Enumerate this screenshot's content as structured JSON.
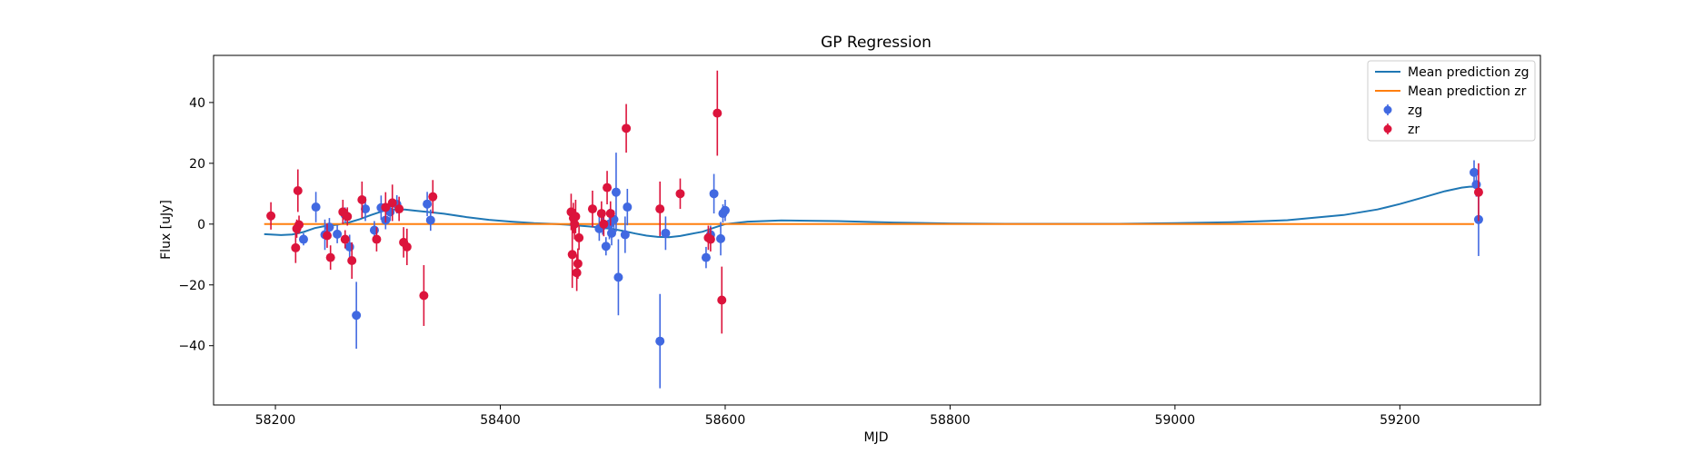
{
  "chart_data": {
    "type": "scatter",
    "title": "GP Regression",
    "xlabel": "MJD",
    "ylabel": "Flux [uJy]",
    "xlim": [
      58145,
      59325
    ],
    "ylim": [
      -59.5,
      55.5
    ],
    "xticks": [
      58200,
      58400,
      58600,
      58800,
      59000,
      59200
    ],
    "yticks": [
      -40,
      -20,
      0,
      20,
      40
    ],
    "grid": false,
    "legend_position": "top-right",
    "lines": [
      {
        "name": "Mean prediction zg",
        "color": "#1f77b4",
        "x": [
          58190,
          58205,
          58215,
          58225,
          58235,
          58245,
          58255,
          58265,
          58275,
          58285,
          58295,
          58305,
          58315,
          58325,
          58335,
          58350,
          58370,
          58390,
          58410,
          58430,
          58450,
          58460,
          58470,
          58480,
          58490,
          58500,
          58510,
          58520,
          58530,
          58540,
          58550,
          58560,
          58570,
          58580,
          58590,
          58600,
          58620,
          58650,
          58700,
          58750,
          58800,
          58850,
          58900,
          58950,
          59000,
          59050,
          59100,
          59150,
          59180,
          59200,
          59220,
          59240,
          59255,
          59262,
          59266
        ],
        "y": [
          -3.3,
          -3.6,
          -3.4,
          -2.6,
          -1.3,
          -0.6,
          -0.2,
          0.5,
          1.6,
          3.0,
          4.2,
          4.8,
          4.8,
          4.4,
          4.0,
          3.4,
          2.3,
          1.4,
          0.8,
          0.3,
          0.0,
          -0.2,
          -0.5,
          -0.8,
          -1.2,
          -1.6,
          -2.3,
          -3.1,
          -3.8,
          -4.2,
          -4.3,
          -3.9,
          -3.2,
          -2.5,
          -1.2,
          0.0,
          0.8,
          1.2,
          1.0,
          0.5,
          0.2,
          0.1,
          0.1,
          0.1,
          0.3,
          0.6,
          1.3,
          3.0,
          4.8,
          6.6,
          8.7,
          10.8,
          12.0,
          12.3,
          12.3
        ]
      },
      {
        "name": "Mean prediction zr",
        "color": "#ff7f0e",
        "x": [
          58190,
          59266
        ],
        "y": [
          0,
          0
        ]
      }
    ],
    "series": [
      {
        "name": "zg",
        "color": "#4169e1",
        "points": [
          {
            "x": 58225,
            "y": -5.0,
            "err": 2.0
          },
          {
            "x": 58236,
            "y": 5.6,
            "err": 5.0
          },
          {
            "x": 58244,
            "y": -3.5,
            "err": 5.0
          },
          {
            "x": 58248,
            "y": -1.0,
            "err": 3.0
          },
          {
            "x": 58255,
            "y": -3.3,
            "err": 3.0
          },
          {
            "x": 58262,
            "y": 3.0,
            "err": 2.5
          },
          {
            "x": 58266,
            "y": -7.5,
            "err": 4.0
          },
          {
            "x": 58272,
            "y": -30.0,
            "err": 11.0
          },
          {
            "x": 58280,
            "y": 5.0,
            "err": 4.0
          },
          {
            "x": 58288,
            "y": -2.0,
            "err": 3.0
          },
          {
            "x": 58294,
            "y": 5.4,
            "err": 4.0
          },
          {
            "x": 58298,
            "y": 1.3,
            "err": 3.0
          },
          {
            "x": 58302,
            "y": 4.0,
            "err": 3.0
          },
          {
            "x": 58308,
            "y": 6.5,
            "err": 3.0
          },
          {
            "x": 58335,
            "y": 6.6,
            "err": 4.0
          },
          {
            "x": 58338,
            "y": 1.3,
            "err": 3.5
          },
          {
            "x": 58488,
            "y": -1.5,
            "err": 4.0
          },
          {
            "x": 58491,
            "y": -0.5,
            "err": 3.0
          },
          {
            "x": 58494,
            "y": -7.3,
            "err": 3.0
          },
          {
            "x": 58497,
            "y": 0.0,
            "err": 5.0
          },
          {
            "x": 58499,
            "y": -3.0,
            "err": 4.0
          },
          {
            "x": 58501,
            "y": 1.5,
            "err": 3.0
          },
          {
            "x": 58503,
            "y": 10.5,
            "err": 13.0
          },
          {
            "x": 58505,
            "y": -17.5,
            "err": 12.5
          },
          {
            "x": 58511,
            "y": -3.5,
            "err": 6.0
          },
          {
            "x": 58513,
            "y": 5.6,
            "err": 6.0
          },
          {
            "x": 58542,
            "y": -38.5,
            "err": 15.5
          },
          {
            "x": 58547,
            "y": -3.0,
            "err": 5.5
          },
          {
            "x": 58583,
            "y": -11.0,
            "err": 3.5
          },
          {
            "x": 58587,
            "y": -3.5,
            "err": 3.0
          },
          {
            "x": 58590,
            "y": 10.0,
            "err": 6.5
          },
          {
            "x": 58596,
            "y": -4.8,
            "err": 5.5
          },
          {
            "x": 58598,
            "y": 3.5,
            "err": 3.0
          },
          {
            "x": 58600,
            "y": 4.5,
            "err": 3.5
          },
          {
            "x": 59266,
            "y": 17.0,
            "err": 4.0
          },
          {
            "x": 59268,
            "y": 13.0,
            "err": 4.0
          },
          {
            "x": 59270,
            "y": 1.5,
            "err": 12.0
          }
        ]
      },
      {
        "name": "zr",
        "color": "#dc143c",
        "points": [
          {
            "x": 58196,
            "y": 2.7,
            "err": 4.5
          },
          {
            "x": 58218,
            "y": -7.8,
            "err": 5.0
          },
          {
            "x": 58219,
            "y": -1.5,
            "err": 3.0
          },
          {
            "x": 58220,
            "y": 11.0,
            "err": 7.0
          },
          {
            "x": 58221,
            "y": -0.2,
            "err": 3.0
          },
          {
            "x": 58246,
            "y": -3.8,
            "err": 4.0
          },
          {
            "x": 58249,
            "y": -11.0,
            "err": 4.0
          },
          {
            "x": 58260,
            "y": 4.0,
            "err": 4.0
          },
          {
            "x": 58262,
            "y": -5.0,
            "err": 3.0
          },
          {
            "x": 58264,
            "y": 2.5,
            "err": 3.0
          },
          {
            "x": 58268,
            "y": -12.0,
            "err": 6.0
          },
          {
            "x": 58277,
            "y": 8.0,
            "err": 6.0
          },
          {
            "x": 58290,
            "y": -5.0,
            "err": 4.0
          },
          {
            "x": 58298,
            "y": 5.5,
            "err": 5.0
          },
          {
            "x": 58304,
            "y": 7.0,
            "err": 6.0
          },
          {
            "x": 58310,
            "y": 5.0,
            "err": 4.0
          },
          {
            "x": 58314,
            "y": -6.0,
            "err": 5.0
          },
          {
            "x": 58317,
            "y": -7.5,
            "err": 6.0
          },
          {
            "x": 58332,
            "y": -23.5,
            "err": 10.0
          },
          {
            "x": 58340,
            "y": 9.0,
            "err": 5.5
          },
          {
            "x": 58463,
            "y": 4.0,
            "err": 6.0
          },
          {
            "x": 58464,
            "y": -10.0,
            "err": 11.0
          },
          {
            "x": 58465,
            "y": 2.0,
            "err": 5.0
          },
          {
            "x": 58466,
            "y": 0.0,
            "err": 5.0
          },
          {
            "x": 58467,
            "y": 2.5,
            "err": 5.5
          },
          {
            "x": 58468,
            "y": -16.0,
            "err": 6.0
          },
          {
            "x": 58469,
            "y": -13.0,
            "err": 5.0
          },
          {
            "x": 58470,
            "y": -4.5,
            "err": 4.0
          },
          {
            "x": 58482,
            "y": 5.0,
            "err": 6.0
          },
          {
            "x": 58490,
            "y": 3.5,
            "err": 4.0
          },
          {
            "x": 58492,
            "y": 0.0,
            "err": 4.0
          },
          {
            "x": 58495,
            "y": 12.0,
            "err": 5.5
          },
          {
            "x": 58498,
            "y": 3.5,
            "err": 4.0
          },
          {
            "x": 58512,
            "y": 31.5,
            "err": 8.0
          },
          {
            "x": 58542,
            "y": 5.0,
            "err": 9.0
          },
          {
            "x": 58560,
            "y": 10.0,
            "err": 5.0
          },
          {
            "x": 58585,
            "y": -4.5,
            "err": 4.0
          },
          {
            "x": 58587,
            "y": -5.0,
            "err": 4.0
          },
          {
            "x": 58593,
            "y": 36.5,
            "err": 14.0
          },
          {
            "x": 58597,
            "y": -25.0,
            "err": 11.0
          },
          {
            "x": 59270,
            "y": 10.5,
            "err": 9.5
          }
        ]
      }
    ]
  }
}
